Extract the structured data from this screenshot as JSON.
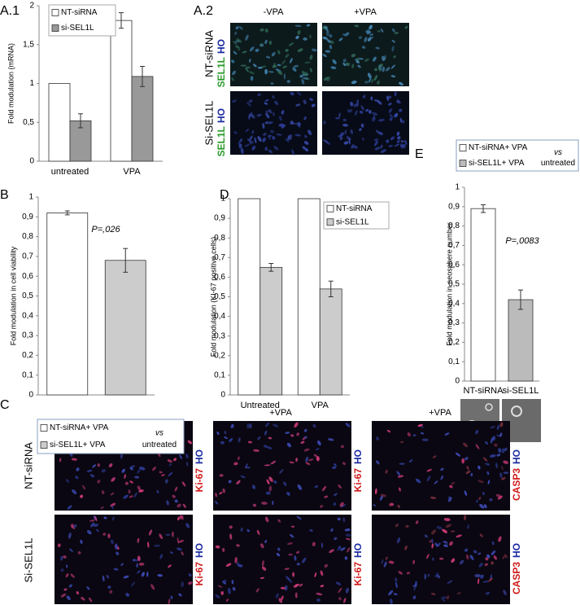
{
  "chart_data": [
    {
      "type": "bar",
      "y_label": "Fold modulation (mRNA)",
      "categories": [
        "untreated",
        "VPA"
      ],
      "series": [
        {
          "name": "NT-siRNA",
          "color": "#ffffff",
          "values": [
            1,
            1.81
          ],
          "errors": [
            null,
            0.1
          ]
        },
        {
          "name": "si-SEL1L",
          "color": "#999999",
          "values": [
            0.52,
            1.09
          ],
          "errors": [
            0.09,
            0.13
          ]
        }
      ],
      "ylim": [
        0,
        2
      ],
      "yticks": [
        0,
        {
          "value": 0.5,
          "label": "0,5"
        },
        1,
        {
          "value": 1.5,
          "label": "1,5"
        },
        2
      ]
    },
    {
      "type": "bar",
      "y_label": "Fold modulation in cell viability",
      "categories": [
        null,
        null
      ],
      "series": [
        {
          "name": "NT-siRNA+ VPA",
          "color": "#ffffff",
          "values": [
            0.92,
            null
          ],
          "errors": [
            0.01,
            null
          ]
        },
        {
          "name": "si-SEL1L+ VPA",
          "color": "#cccccc",
          "values": [
            null,
            0.68
          ],
          "errors": [
            null,
            0.06
          ]
        }
      ],
      "legend_note": [
        "vs",
        "untreated"
      ],
      "annotation": "P=,026",
      "ylim": [
        0,
        1
      ],
      "yticks": [
        0,
        {
          "value": 0.1,
          "label": "0,1"
        },
        {
          "value": 0.2,
          "label": "0,2"
        },
        {
          "value": 0.3,
          "label": "0,3"
        },
        {
          "value": 0.4,
          "label": "0,4"
        },
        {
          "value": 0.5,
          "label": "0,5"
        },
        {
          "value": 0.6,
          "label": "0,6"
        },
        {
          "value": 0.7,
          "label": "0,7"
        },
        {
          "value": 0.8,
          "label": "0,8"
        },
        {
          "value": 0.9,
          "label": "0,9"
        },
        1
      ]
    },
    {
      "type": "bar",
      "y_label": "Fold modulation (KI-67 positive cells)",
      "categories": [
        "Untreated",
        "VPA"
      ],
      "series": [
        {
          "name": "NT-siRNA",
          "color": "#ffffff",
          "values": [
            1,
            1
          ],
          "errors": [
            null,
            null
          ]
        },
        {
          "name": "si-SEL1L",
          "color": "#cccccc",
          "values": [
            0.65,
            0.54
          ],
          "errors": [
            0.02,
            0.04
          ]
        }
      ],
      "ylim": [
        0,
        1
      ],
      "yticks": [
        0,
        {
          "value": 0.1,
          "label": "0,1"
        },
        {
          "value": 0.2,
          "label": "0,2"
        },
        {
          "value": 0.3,
          "label": "0,3"
        },
        {
          "value": 0.4,
          "label": "0,4"
        },
        {
          "value": 0.5,
          "label": "0,5"
        },
        {
          "value": 0.6,
          "label": "0,6"
        },
        {
          "value": 0.7,
          "label": "0,7"
        },
        {
          "value": 0.8,
          "label": "0,8"
        },
        {
          "value": 0.9,
          "label": "0,9"
        },
        1
      ]
    },
    {
      "type": "bar",
      "y_label": "Fold modulation in neosphere number",
      "categories": [
        "NT-siRNA",
        "si-SEL1L"
      ],
      "series": [
        {
          "name": "NT-siRNA+ VPA",
          "color": "#ffffff",
          "values": [
            0.89,
            null
          ],
          "errors": [
            0.02,
            null
          ]
        },
        {
          "name": "si-SEL1L+ VPA",
          "color": "#bbbbbb",
          "values": [
            null,
            0.42
          ],
          "errors": [
            null,
            0.05
          ]
        }
      ],
      "legend_note": [
        "vs",
        "untreated"
      ],
      "annotation": "P=,0083",
      "ylim": [
        0,
        1
      ],
      "yticks": [
        0,
        {
          "value": 0.1,
          "label": "0,1"
        },
        {
          "value": 0.2,
          "label": "0,2"
        },
        {
          "value": 0.3,
          "label": "0,3"
        },
        {
          "value": 0.4,
          "label": "0,4"
        },
        {
          "value": 0.5,
          "label": "0,5"
        },
        {
          "value": 0.6,
          "label": "0,6"
        },
        {
          "value": 0.7,
          "label": "0,7"
        },
        {
          "value": 0.8,
          "label": "0,8"
        },
        {
          "value": 0.9,
          "label": "0,9"
        },
        1
      ]
    }
  ],
  "panels": {
    "a1": "A.1",
    "a2": "A.2",
    "b": "B",
    "c": "C",
    "d": "D",
    "e": "E"
  },
  "a2": {
    "columns": [
      "-VPA",
      "+VPA"
    ],
    "rows": [
      "NT-siRNA",
      "Si-SEL1L"
    ],
    "stain": [
      "SEL1L",
      "HO"
    ]
  },
  "c": {
    "columns": [
      "+VPA",
      "+VPA"
    ],
    "rows": [
      "NT-siRNA",
      "Si-SEL1L"
    ],
    "stains": [
      [
        "Ki-67",
        "HO"
      ],
      [
        "Ki-67",
        "HO"
      ],
      [
        "CASP3",
        "HO"
      ]
    ]
  }
}
